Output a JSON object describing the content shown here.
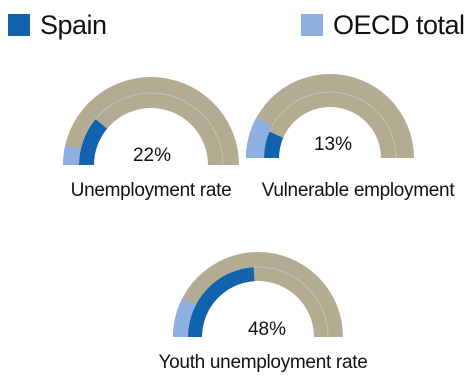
{
  "legend": {
    "spain": {
      "label": "Spain",
      "color": "#1163ad"
    },
    "oecd": {
      "label": "OECD total",
      "color": "#8eafe0"
    }
  },
  "track_color": "#b4ab93",
  "chart_data": [
    {
      "type": "gauge",
      "label": "Unemployment rate",
      "value_label": "22%",
      "series": [
        {
          "name": "Spain",
          "value": 22
        },
        {
          "name": "OECD total",
          "value": 7
        }
      ],
      "range": [
        0,
        100
      ]
    },
    {
      "type": "gauge",
      "label": "Vulnerable employment",
      "value_label": "13%",
      "series": [
        {
          "name": "Spain",
          "value": 13
        },
        {
          "name": "OECD total",
          "value": 16
        }
      ],
      "range": [
        0,
        100
      ]
    },
    {
      "type": "gauge",
      "label": "Youth unemployment rate",
      "value_label": "48%",
      "series": [
        {
          "name": "Spain",
          "value": 48
        },
        {
          "name": "OECD total",
          "value": 15
        }
      ],
      "range": [
        0,
        100
      ]
    }
  ]
}
